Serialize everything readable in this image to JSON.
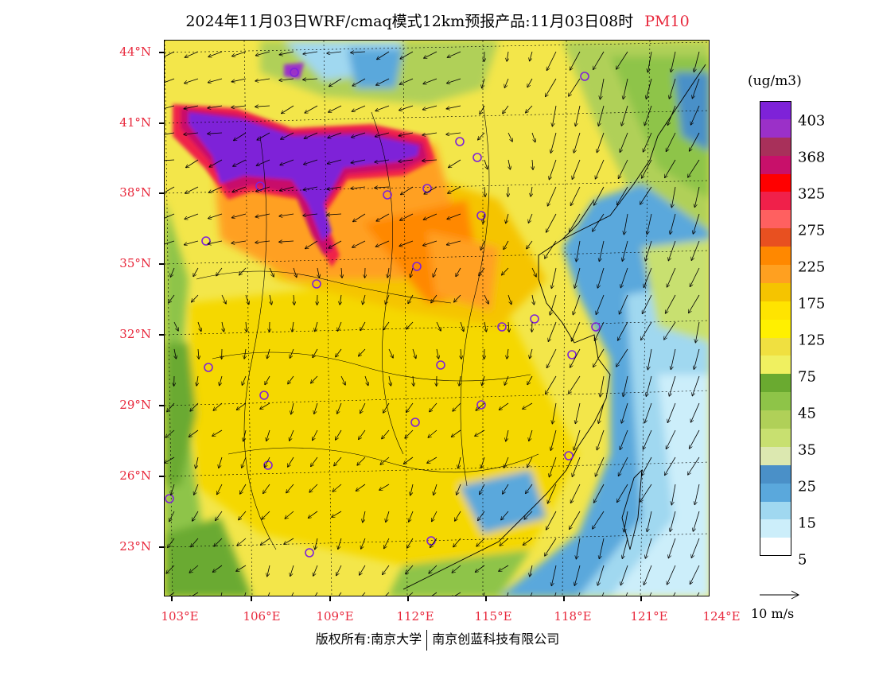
{
  "title": {
    "main": "2024年11月03日WRF/cmaq模式12km预报产品:11月03日08时",
    "pollutant": "PM10"
  },
  "latitude_labels": [
    "44°N",
    "41°N",
    "38°N",
    "35°N",
    "32°N",
    "29°N",
    "26°N",
    "23°N"
  ],
  "longitude_labels": [
    "103°E",
    "106°E",
    "109°E",
    "112°E",
    "115°E",
    "118°E",
    "121°E",
    "124°E"
  ],
  "colorbar": {
    "unit": "(ug/m3)",
    "labels": [
      "403",
      "368",
      "325",
      "275",
      "225",
      "175",
      "125",
      "75",
      "45",
      "35",
      "25",
      "15",
      "5"
    ],
    "colors": [
      "#7e22d8",
      "#9b30c8",
      "#a8305a",
      "#c8106a",
      "#ff0000",
      "#f0204a",
      "#ff6060",
      "#e85020",
      "#ff8800",
      "#ffa020",
      "#f5c400",
      "#ffe400",
      "#fff000",
      "#f0e040",
      "#f0f060",
      "#6aaa30",
      "#8ec448",
      "#b0d058",
      "#c8e070",
      "#dce8b0",
      "#4a90c8",
      "#5aa8dc",
      "#a0d8f0",
      "#cceefa",
      "#ffffff"
    ]
  },
  "vector_reference": "10 m/s",
  "copyright": {
    "left": "版权所有:南京大学",
    "right": "南京创蓝科技有限公司"
  }
}
